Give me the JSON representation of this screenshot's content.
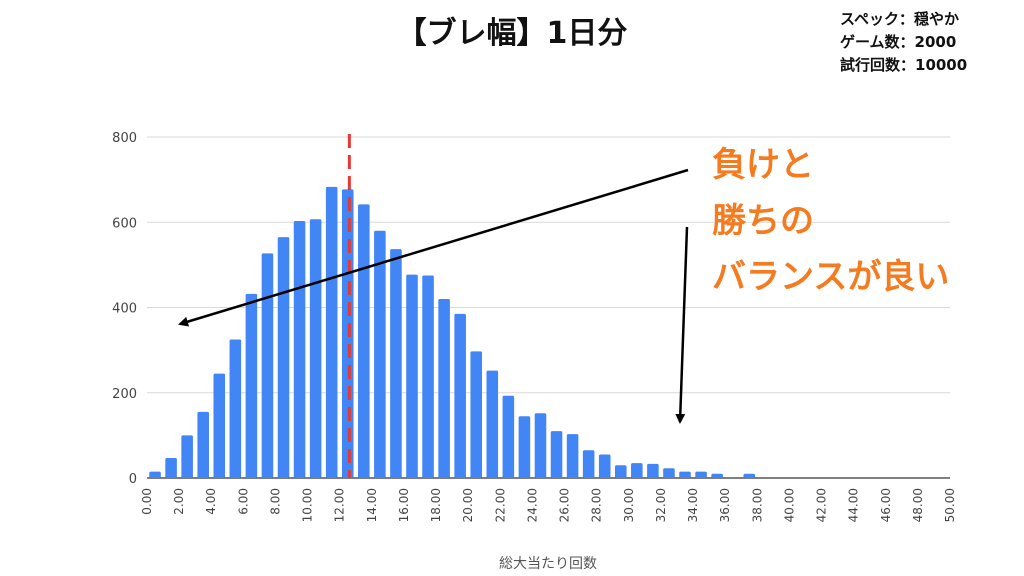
{
  "title": "【ブレ幅】1日分",
  "spec_lines": [
    "スペック：穏やか",
    "ゲーム数：2000",
    "試行回数：10000"
  ],
  "callout_lines": [
    "負けと",
    "勝ちの",
    "バランスが良い"
  ],
  "colors": {
    "bar": "#4285F4",
    "mean_line": "#E53935",
    "callout": "#F47B20",
    "grid": "#D9D9D9",
    "arrow": "#000000"
  },
  "chart_data": {
    "type": "bar",
    "xlabel": "総大当たり回数",
    "ylabel": "",
    "ylim": [
      0,
      800
    ],
    "y_ticks": [
      0,
      200,
      400,
      600,
      800
    ],
    "x_tick_labels": [
      "0.00",
      "2.00",
      "4.00",
      "6.00",
      "8.00",
      "10.00",
      "12.00",
      "14.00",
      "16.00",
      "18.00",
      "20.00",
      "22.00",
      "24.00",
      "26.00",
      "28.00",
      "30.00",
      "32.00",
      "34.00",
      "36.00",
      "38.00",
      "40.00",
      "42.00",
      "44.00",
      "46.00",
      "48.00",
      "50.00"
    ],
    "x": [
      0,
      1,
      2,
      3,
      4,
      5,
      6,
      7,
      8,
      9,
      10,
      11,
      12,
      13,
      14,
      15,
      16,
      17,
      18,
      19,
      20,
      21,
      22,
      23,
      24,
      25,
      26,
      27,
      28,
      29,
      30,
      31,
      32,
      33,
      34,
      35,
      36,
      37,
      38,
      39,
      40,
      41,
      42,
      43,
      44,
      45,
      46,
      47,
      48,
      49
    ],
    "values": [
      15,
      47,
      100,
      155,
      245,
      325,
      432,
      527,
      565,
      603,
      607,
      683,
      677,
      642,
      580,
      537,
      477,
      475,
      420,
      385,
      297,
      252,
      193,
      145,
      152,
      110,
      103,
      65,
      55,
      30,
      35,
      33,
      23,
      15,
      15,
      10,
      0,
      10,
      0,
      0,
      0,
      0,
      0,
      0,
      0,
      0,
      0,
      0,
      0,
      0
    ],
    "mean_x": 12.6,
    "grid": true
  }
}
